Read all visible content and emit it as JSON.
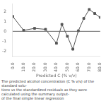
{
  "chart_data": {
    "type": "line",
    "x": [
      0,
      10.0,
      20.0,
      30.0,
      40.0,
      45.0,
      50.0,
      55.0,
      60.0,
      65.0,
      70.0,
      75.0,
      80.0
    ],
    "values": [
      1.5,
      0.1,
      0.3,
      0.2,
      -1.2,
      0.7,
      -0.5,
      -1.8,
      0.05,
      1.3,
      2.2,
      1.8,
      1.4
    ],
    "color": "#555555",
    "marker": "square",
    "hline_y": 0,
    "xlabel": "Predicted C (% v/v)",
    "xlim": [
      0,
      80
    ],
    "ylim": [
      -2.5,
      2.8
    ],
    "xticks": [
      {
        "value": 0,
        "label": "0.0"
      },
      {
        "value": 10.0,
        "label": "10.0"
      },
      {
        "value": 20.0,
        "label": "20.0"
      },
      {
        "value": 30.0,
        "label": "30.0"
      },
      {
        "value": 40.0,
        "label": "40.0"
      },
      {
        "value": 50.0,
        "label": "50.0"
      },
      {
        "value": 60.0,
        "label": "60.0"
      },
      {
        "value": 70.0,
        "label": "70.0"
      },
      {
        "value": 80.0,
        "label": "80.0"
      }
    ],
    "yticks": [
      -2,
      -1,
      0,
      1,
      2
    ],
    "grid": false,
    "annotations": [
      "The predicted alcohol concentration (C % v/v) of the standard solu-",
      "tions vs the standardized residuals as they were calculated using the summary output-",
      "of the final simple linear regression"
    ]
  }
}
